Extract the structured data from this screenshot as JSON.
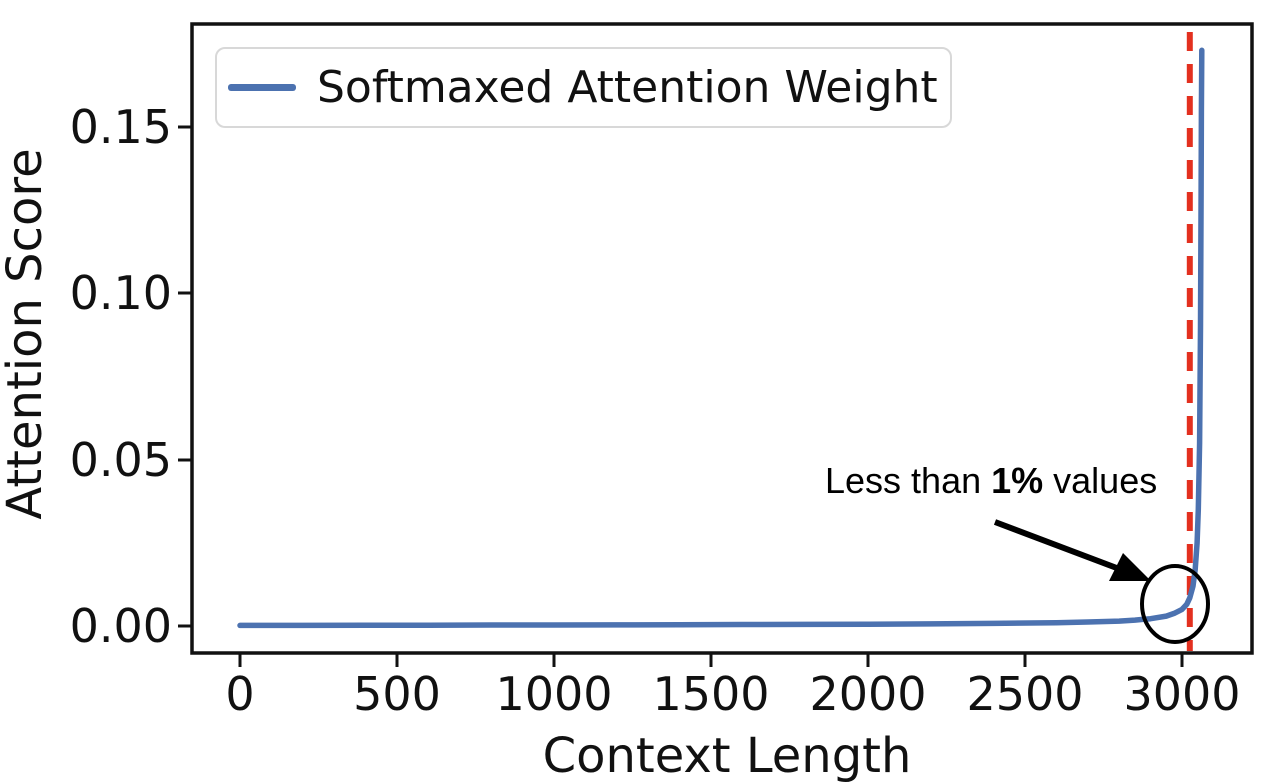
{
  "figure": {
    "xlabel": "Context Length",
    "ylabel": "Attention Score",
    "legend": {
      "label": "Softmaxed Attention Weight"
    },
    "annotation": {
      "prefix": "Less than ",
      "bold": "1%",
      "suffix": " values"
    }
  },
  "chart_data": {
    "type": "line",
    "title": "",
    "xlabel": "Context Length",
    "ylabel": "Attention Score",
    "legend_entries": [
      "Softmaxed Attention Weight"
    ],
    "legend_position": "upper left",
    "grid": false,
    "xlim": [
      -153,
      3223
    ],
    "ylim": [
      -0.0081,
      0.1809
    ],
    "x_ticks": [
      0,
      500,
      1000,
      1500,
      2000,
      2500,
      3000
    ],
    "x_tick_labels": [
      "0",
      "500",
      "1000",
      "1500",
      "2000",
      "2500",
      "3000"
    ],
    "y_ticks": [
      0.0,
      0.05,
      0.1,
      0.15
    ],
    "y_tick_labels": [
      "0.00",
      "0.05",
      "0.10",
      "0.15"
    ],
    "series": [
      {
        "name": "Softmaxed Attention Weight",
        "color": "#4C72B0",
        "points": [
          [
            0,
            0.0002
          ],
          [
            200,
            0.0002
          ],
          [
            400,
            0.00025
          ],
          [
            600,
            0.00025
          ],
          [
            800,
            0.0003
          ],
          [
            1000,
            0.0003
          ],
          [
            1200,
            0.00035
          ],
          [
            1400,
            0.0004
          ],
          [
            1600,
            0.00045
          ],
          [
            1800,
            0.0005
          ],
          [
            2000,
            0.00055
          ],
          [
            2200,
            0.00065
          ],
          [
            2400,
            0.0008
          ],
          [
            2600,
            0.001
          ],
          [
            2700,
            0.0012
          ],
          [
            2800,
            0.0015
          ],
          [
            2850,
            0.0018
          ],
          [
            2900,
            0.0022
          ],
          [
            2950,
            0.003
          ],
          [
            2975,
            0.0038
          ],
          [
            3000,
            0.005
          ],
          [
            3015,
            0.0065
          ],
          [
            3025,
            0.0085
          ],
          [
            3035,
            0.012
          ],
          [
            3042,
            0.017
          ],
          [
            3048,
            0.025
          ],
          [
            3052,
            0.035
          ],
          [
            3056,
            0.055
          ],
          [
            3059,
            0.09
          ],
          [
            3061,
            0.13
          ],
          [
            3062,
            0.155
          ],
          [
            3063,
            0.173
          ]
        ]
      }
    ],
    "vline": {
      "x": 3025,
      "color": "#E3301F",
      "style": "dashed"
    },
    "annotations": [
      {
        "text": "Less than 1% values",
        "bold_part": "1%",
        "points_to_x": 2978,
        "points_to_y": 0.0066
      }
    ]
  }
}
